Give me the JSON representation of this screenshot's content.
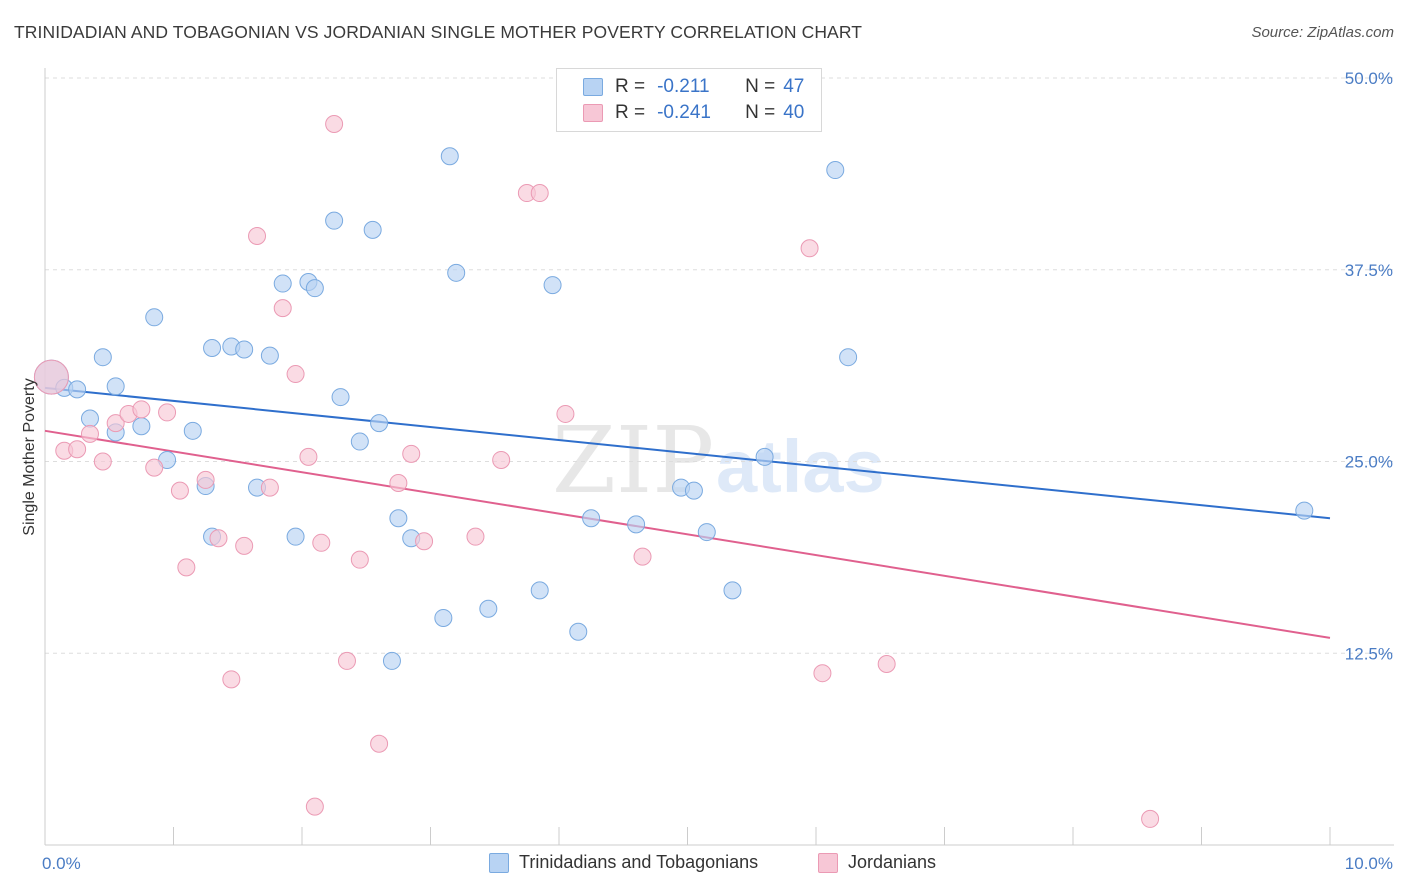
{
  "title": "TRINIDADIAN AND TOBAGONIAN VS JORDANIAN SINGLE MOTHER POVERTY CORRELATION CHART",
  "source": "Source: ZipAtlas.com",
  "watermark": {
    "zip": "ZIP",
    "atlas": "atlas"
  },
  "legend": {
    "rows": [
      {
        "r_label": "R =",
        "r_value": "-0.211",
        "n_label": "N =",
        "n_value": "47"
      },
      {
        "r_label": "R =",
        "r_value": "-0.241",
        "n_label": "N =",
        "n_value": "40"
      }
    ]
  },
  "bottom_legend": {
    "series1": "Trinidadians and Tobagonians",
    "series2": "Jordanians"
  },
  "colors": {
    "blue_fill": "#b8d3f3",
    "blue_stroke": "#7aaae0",
    "blue_line": "#2f6fcc",
    "pink_fill": "#f7c7d6",
    "pink_stroke": "#eb9ab4",
    "pink_line": "#e0608e",
    "tick_text": "#4a7cc4",
    "grid": "#dddddd"
  },
  "chart_data": {
    "type": "scatter",
    "title": "TRINIDADIAN AND TOBAGONIAN VS JORDANIAN SINGLE MOTHER POVERTY CORRELATION CHART",
    "xlabel": "",
    "ylabel": "Single Mother Poverty",
    "xlim": [
      0,
      10
    ],
    "ylim": [
      0,
      50
    ],
    "x_tick_labels": [
      {
        "value": 0,
        "label": "0.0%"
      },
      {
        "value": 10,
        "label": "10.0%"
      }
    ],
    "x_minor_ticks": [
      1,
      2,
      3,
      4,
      5,
      6,
      7,
      8,
      9,
      10
    ],
    "y_ticks": [
      {
        "value": 12.5,
        "label": "12.5%"
      },
      {
        "value": 25,
        "label": "25.0%"
      },
      {
        "value": 37.5,
        "label": "37.5%"
      },
      {
        "value": 50,
        "label": "50.0%"
      }
    ],
    "series": [
      {
        "name": "Trinidadians and Tobagonians",
        "color_key": "blue",
        "trend": {
          "x": [
            0,
            10
          ],
          "y": [
            29.8,
            21.3
          ]
        },
        "points": [
          [
            0.05,
            30.5
          ],
          [
            0.15,
            29.8
          ],
          [
            0.25,
            29.7
          ],
          [
            0.35,
            27.8
          ],
          [
            0.45,
            31.8
          ],
          [
            0.55,
            29.9
          ],
          [
            0.55,
            26.9
          ],
          [
            0.75,
            27.3
          ],
          [
            0.85,
            34.4
          ],
          [
            0.95,
            25.1
          ],
          [
            1.15,
            27.0
          ],
          [
            1.25,
            23.4
          ],
          [
            1.3,
            20.1
          ],
          [
            1.3,
            32.4
          ],
          [
            1.45,
            32.5
          ],
          [
            1.55,
            32.3
          ],
          [
            1.65,
            23.3
          ],
          [
            1.75,
            31.9
          ],
          [
            1.85,
            36.6
          ],
          [
            1.95,
            20.1
          ],
          [
            2.05,
            36.7
          ],
          [
            2.1,
            36.3
          ],
          [
            2.25,
            40.7
          ],
          [
            2.3,
            29.2
          ],
          [
            2.45,
            26.3
          ],
          [
            2.55,
            40.1
          ],
          [
            2.6,
            27.5
          ],
          [
            2.7,
            12.0
          ],
          [
            2.75,
            21.3
          ],
          [
            2.85,
            20.0
          ],
          [
            3.1,
            14.8
          ],
          [
            3.15,
            44.9
          ],
          [
            3.2,
            37.3
          ],
          [
            3.45,
            15.4
          ],
          [
            3.85,
            16.6
          ],
          [
            3.95,
            36.5
          ],
          [
            4.15,
            13.9
          ],
          [
            4.25,
            21.3
          ],
          [
            4.6,
            20.9
          ],
          [
            4.95,
            23.3
          ],
          [
            5.05,
            23.1
          ],
          [
            5.15,
            20.4
          ],
          [
            5.35,
            16.6
          ],
          [
            5.6,
            25.3
          ],
          [
            6.15,
            44.0
          ],
          [
            6.25,
            31.8
          ],
          [
            9.8,
            21.8
          ]
        ]
      },
      {
        "name": "Jordanians",
        "color_key": "pink",
        "trend": {
          "x": [
            0,
            10
          ],
          "y": [
            27.0,
            13.5
          ]
        },
        "points": [
          [
            0.05,
            30.5
          ],
          [
            0.15,
            25.7
          ],
          [
            0.25,
            25.8
          ],
          [
            0.35,
            26.8
          ],
          [
            0.45,
            25.0
          ],
          [
            0.55,
            27.5
          ],
          [
            0.65,
            28.1
          ],
          [
            0.75,
            28.4
          ],
          [
            0.85,
            24.6
          ],
          [
            0.95,
            28.2
          ],
          [
            1.05,
            23.1
          ],
          [
            1.1,
            18.1
          ],
          [
            1.25,
            23.8
          ],
          [
            1.35,
            20.0
          ],
          [
            1.45,
            10.8
          ],
          [
            1.55,
            19.5
          ],
          [
            1.65,
            39.7
          ],
          [
            1.75,
            23.3
          ],
          [
            1.85,
            35.0
          ],
          [
            1.95,
            30.7
          ],
          [
            2.05,
            25.3
          ],
          [
            2.1,
            2.5
          ],
          [
            2.15,
            19.7
          ],
          [
            2.25,
            47.0
          ],
          [
            2.35,
            12.0
          ],
          [
            2.45,
            18.6
          ],
          [
            2.6,
            6.6
          ],
          [
            2.75,
            23.6
          ],
          [
            2.85,
            25.5
          ],
          [
            2.95,
            19.8
          ],
          [
            3.35,
            20.1
          ],
          [
            3.55,
            25.1
          ],
          [
            3.75,
            42.5
          ],
          [
            3.85,
            42.5
          ],
          [
            4.05,
            28.1
          ],
          [
            4.65,
            18.8
          ],
          [
            5.95,
            38.9
          ],
          [
            6.05,
            11.2
          ],
          [
            6.55,
            11.8
          ],
          [
            8.6,
            1.7
          ]
        ]
      }
    ]
  }
}
